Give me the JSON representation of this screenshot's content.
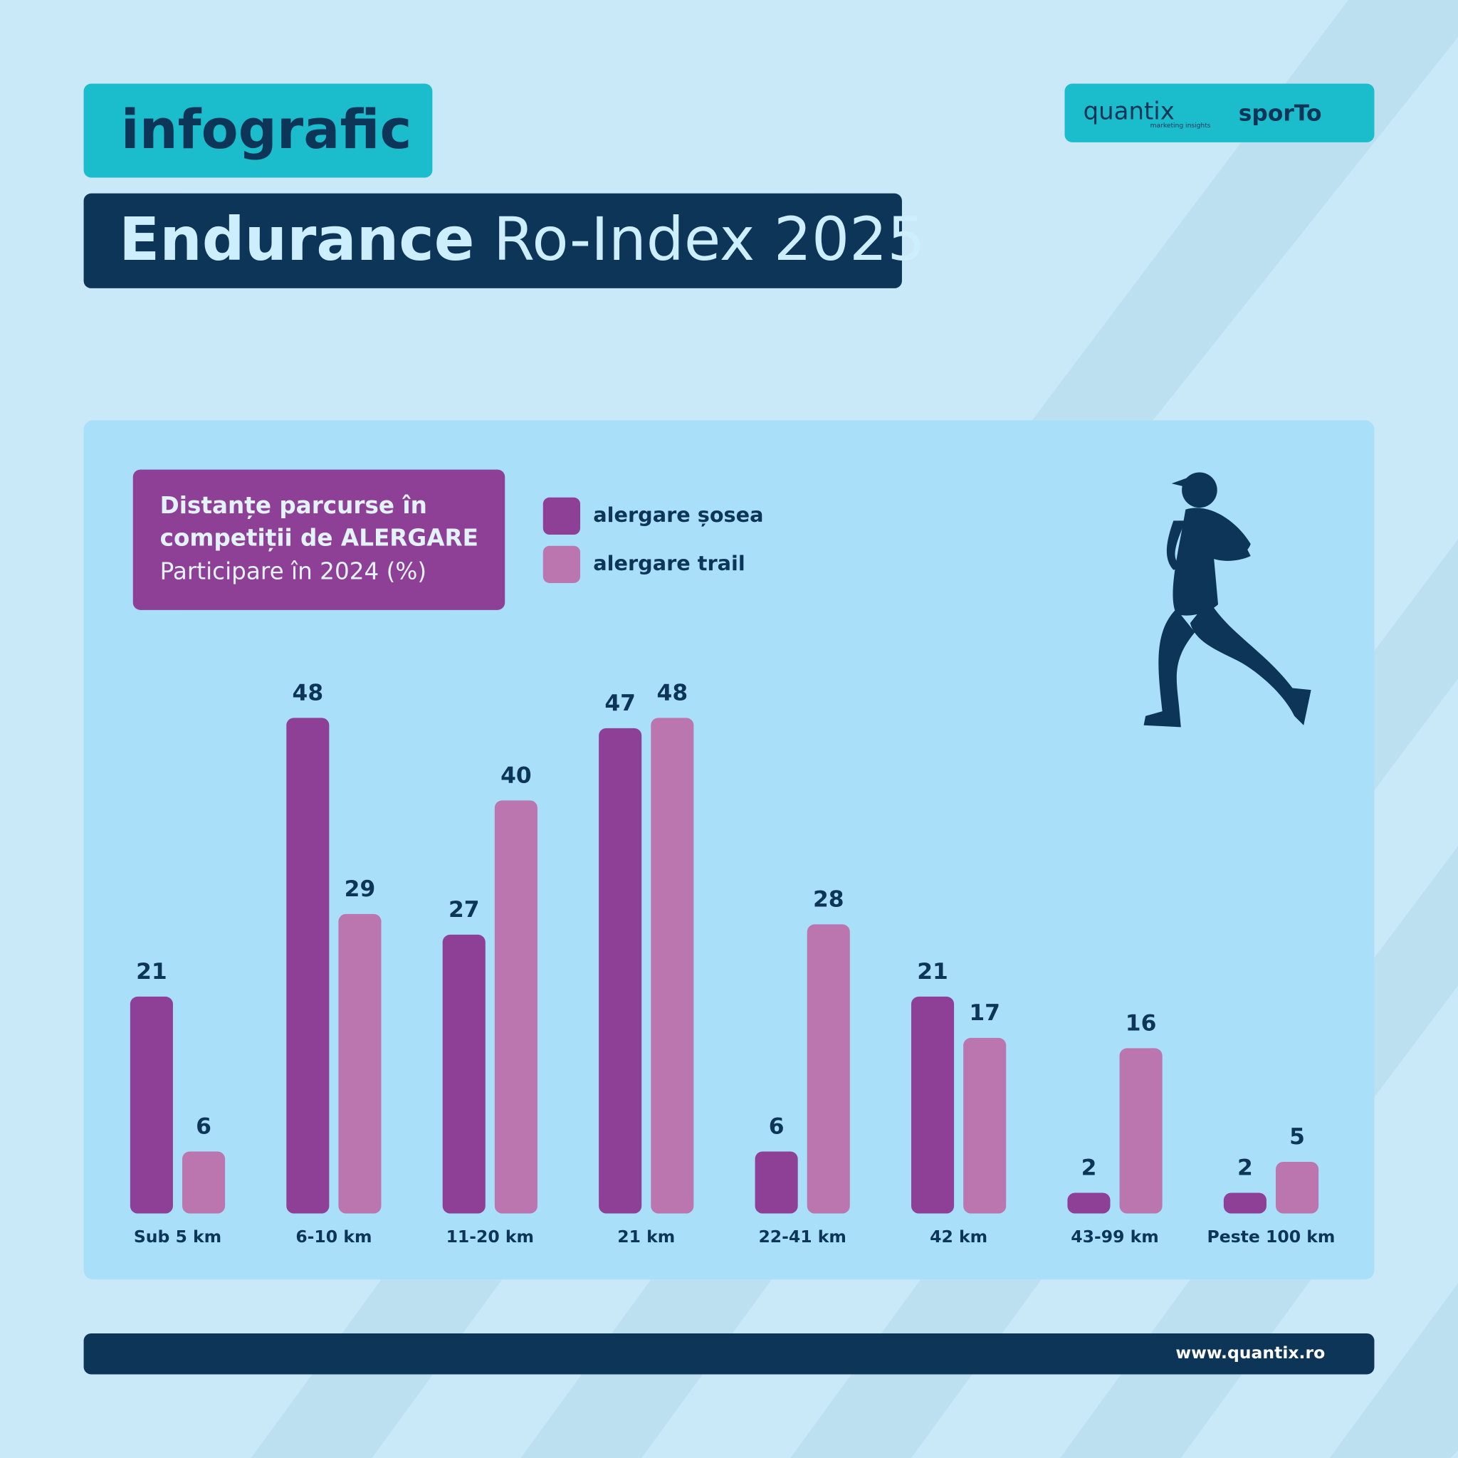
{
  "header": {
    "tag": "infografic",
    "title_bold": "Endurance",
    "title_rest": "Ro-Index 2025",
    "logo_left": "quantix",
    "logo_left_sub": "marketing insights",
    "logo_right": "sporTo"
  },
  "chart_data": {
    "type": "bar",
    "title": "Distanțe parcurse în competiții de ALERGARE",
    "subtitle": "Participare în 2024 (%)",
    "categories": [
      "Sub 5 km",
      "6-10 km",
      "11-20 km",
      "21 km",
      "22-41 km",
      "42 km",
      "43-99 km",
      "Peste 100 km"
    ],
    "series": [
      {
        "name": "alergare șosea",
        "color": "#8e3f96",
        "values": [
          21,
          48,
          27,
          47,
          6,
          21,
          2,
          2
        ]
      },
      {
        "name": "alergare trail",
        "color": "#bb76b0",
        "values": [
          6,
          29,
          40,
          48,
          28,
          17,
          16,
          5
        ]
      }
    ]
  },
  "footer": {
    "url": "www.quantix.ro"
  }
}
